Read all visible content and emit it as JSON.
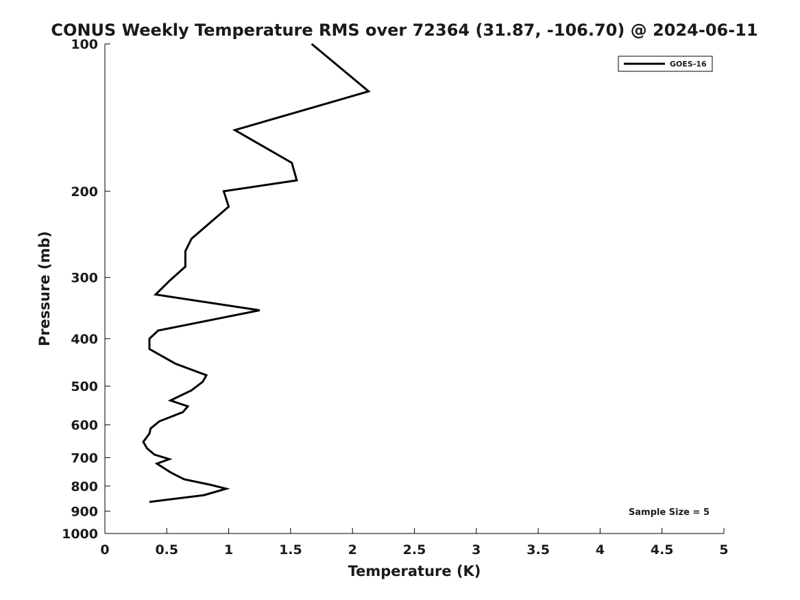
{
  "chart_data": {
    "type": "line",
    "title": "CONUS Weekly Temperature RMS over 72364 (31.87, -106.70) @ 2024-06-11",
    "xlabel": "Temperature (K)",
    "ylabel": "Pressure (mb)",
    "xlim": [
      0,
      5
    ],
    "ylim": [
      1000,
      100
    ],
    "y_scale": "log",
    "y_reversed": true,
    "grid": false,
    "legend_position": "top-right",
    "x_ticks": [
      0,
      0.5,
      1,
      1.5,
      2,
      2.5,
      3,
      3.5,
      4,
      4.5,
      5
    ],
    "x_tick_labels": [
      "0",
      "0.5",
      "1",
      "1.5",
      "2",
      "2.5",
      "3",
      "3.5",
      "4",
      "4.5",
      "5"
    ],
    "y_ticks": [
      100,
      200,
      300,
      400,
      500,
      600,
      700,
      800,
      900,
      1000
    ],
    "y_tick_labels": [
      "100",
      "200",
      "300",
      "400",
      "500",
      "600",
      "700",
      "800",
      "900",
      "1000"
    ],
    "series": [
      {
        "name": "GOES-16",
        "color": "#000000",
        "points": [
          [
            1.67,
            100
          ],
          [
            2.13,
            125
          ],
          [
            1.05,
            150
          ],
          [
            1.51,
            175
          ],
          [
            1.55,
            190
          ],
          [
            0.96,
            200
          ],
          [
            1.0,
            215
          ],
          [
            0.7,
            250
          ],
          [
            0.65,
            265
          ],
          [
            0.65,
            285
          ],
          [
            0.52,
            305
          ],
          [
            0.41,
            325
          ],
          [
            1.25,
            350
          ],
          [
            0.43,
            385
          ],
          [
            0.36,
            400
          ],
          [
            0.36,
            420
          ],
          [
            0.57,
            450
          ],
          [
            0.82,
            475
          ],
          [
            0.79,
            490
          ],
          [
            0.7,
            510
          ],
          [
            0.53,
            535
          ],
          [
            0.67,
            550
          ],
          [
            0.63,
            565
          ],
          [
            0.44,
            590
          ],
          [
            0.37,
            610
          ],
          [
            0.36,
            625
          ],
          [
            0.31,
            650
          ],
          [
            0.34,
            670
          ],
          [
            0.4,
            690
          ],
          [
            0.52,
            705
          ],
          [
            0.42,
            720
          ],
          [
            0.53,
            750
          ],
          [
            0.64,
            775
          ],
          [
            0.85,
            795
          ],
          [
            0.98,
            810
          ],
          [
            0.8,
            835
          ],
          [
            0.36,
            862
          ]
        ]
      }
    ],
    "annotations": [
      {
        "text": "Sample Size = 5",
        "position": "bottom-right"
      }
    ]
  }
}
